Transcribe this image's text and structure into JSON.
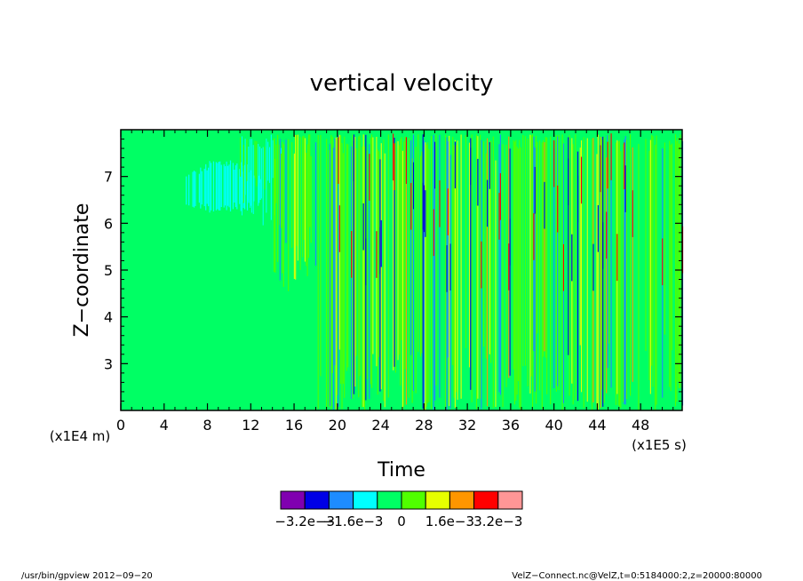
{
  "chart_data": {
    "type": "heatmap",
    "title": "vertical velocity",
    "xlabel": "Time",
    "ylabel": "Z−coordinate",
    "x_unit_label": "(x1E5 s)",
    "y_unit_label": "(x1E4 m)",
    "xlim": [
      0,
      51.84
    ],
    "ylim": [
      2,
      8
    ],
    "x_ticks": [
      "0",
      "4",
      "8",
      "12",
      "16",
      "20",
      "24",
      "28",
      "32",
      "36",
      "40",
      "44",
      "48"
    ],
    "y_ticks": [
      "3",
      "4",
      "5",
      "6",
      "7"
    ],
    "x_tick_values": [
      0,
      4,
      8,
      12,
      16,
      20,
      24,
      28,
      32,
      36,
      40,
      44,
      48
    ],
    "y_tick_values": [
      3,
      4,
      5,
      6,
      7
    ],
    "colorbar": {
      "levels": [
        -0.004,
        -0.0032,
        -0.0024,
        -0.0016,
        -0.0008,
        0,
        0.0008,
        0.0016,
        0.0024,
        0.0032,
        0.004
      ],
      "colors": [
        "#8000b0",
        "#0000e6",
        "#1e8cff",
        "#00ffff",
        "#00ff64",
        "#50ff00",
        "#e6ff00",
        "#ff9600",
        "#ff0000",
        "#ff9696"
      ],
      "tick_labels": [
        "−3.2e−3",
        "−1.6e−3",
        "0",
        "1.6e−3",
        "3.2e−3"
      ],
      "tick_values": [
        -0.0032,
        -0.0016,
        0,
        0.0016,
        0.0032
      ]
    },
    "background_value": 0,
    "regions": [
      {
        "description": "quiescent",
        "x_range": [
          0,
          14
        ],
        "z_range": [
          2,
          8
        ],
        "dominant_class": "0"
      },
      {
        "description": "weak negative patch",
        "x_range": [
          6,
          13
        ],
        "z_range": [
          6.2,
          7.2
        ],
        "dominant_class": "-1.6e-3"
      },
      {
        "description": "oscillating columns",
        "x_range": [
          14,
          51.84
        ],
        "z_range": [
          2,
          8
        ],
        "dominant_class": "0 to 0.8e-3"
      }
    ]
  },
  "footer": {
    "left": "/usr/bin/gpview   2012−09−20",
    "right": "VelZ−Connect.nc@VelZ,t=0:5184000:2,z=20000:80000"
  }
}
